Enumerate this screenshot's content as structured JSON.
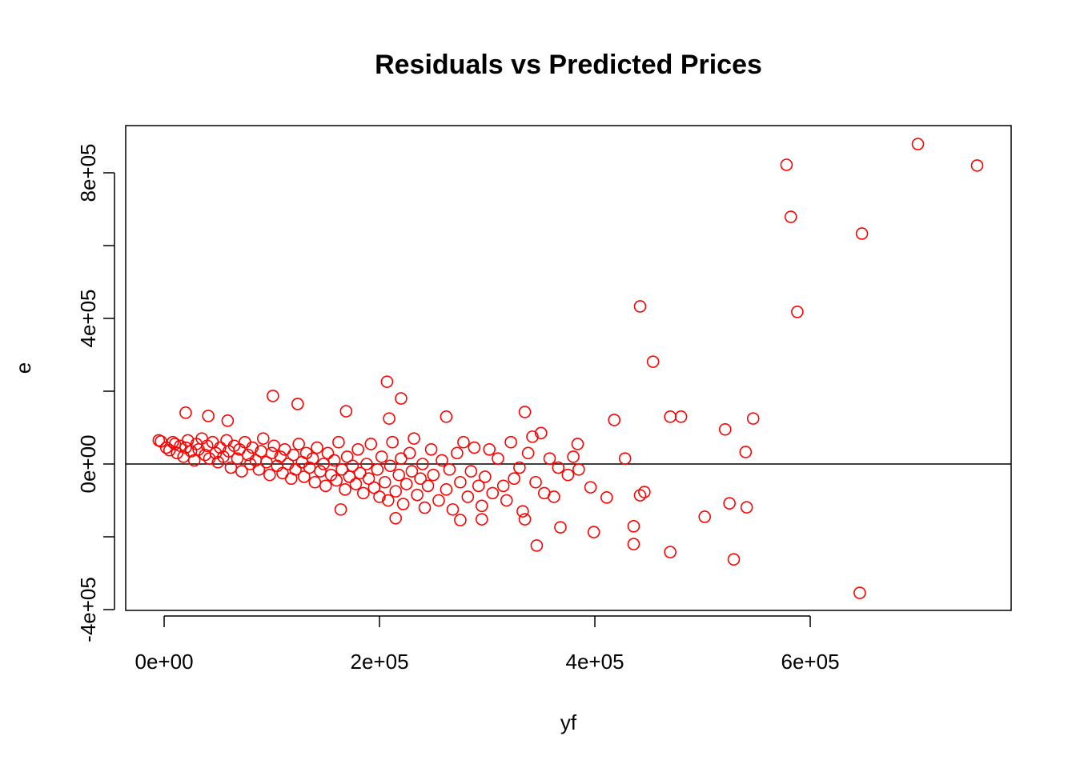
{
  "chart_data": {
    "type": "scatter",
    "title": "Residuals vs Predicted Prices",
    "x_label": "yf",
    "y_label": "e",
    "color": "#ff0000",
    "hline": 0,
    "xlim": [
      -35700,
      786600
    ],
    "ylim": [
      -402200,
      929670
    ],
    "xticks": [
      {
        "value": 0,
        "label": "0e+00"
      },
      {
        "value": 200000,
        "label": "2e+05"
      },
      {
        "value": 400000,
        "label": "4e+05"
      },
      {
        "value": 600000,
        "label": "6e+05"
      }
    ],
    "yticks": [
      {
        "value": -400000,
        "label": "-4e+05"
      },
      {
        "value": 0,
        "label": "0e+00"
      },
      {
        "value": 400000,
        "label": "4e+05"
      },
      {
        "value": 800000,
        "label": "8e+05"
      }
    ],
    "yminorticks": [
      -200000,
      200000,
      600000
    ],
    "x": [
      700000,
      755000,
      578000,
      582000,
      648000,
      442000,
      588000,
      454000,
      207000,
      220000,
      101000,
      124000,
      418000,
      470000,
      480000,
      547000,
      521000,
      540000,
      428000,
      335000,
      262000,
      209000,
      169000,
      20000,
      41000,
      59000,
      384000,
      396000,
      411000,
      446000,
      442000,
      502000,
      525000,
      541000,
      436000,
      436000,
      399000,
      368000,
      346000,
      470000,
      529000,
      646000,
      335000,
      295000,
      275000,
      215000,
      164000,
      -5000,
      -3000,
      2000,
      5000,
      8000,
      10000,
      12000,
      15000,
      18000,
      20000,
      22000,
      25000,
      28000,
      30000,
      32000,
      35000,
      38000,
      40000,
      42000,
      45000,
      48000,
      50000,
      52000,
      55000,
      58000,
      60000,
      62000,
      65000,
      68000,
      70000,
      72000,
      75000,
      78000,
      80000,
      82000,
      85000,
      88000,
      90000,
      92000,
      95000,
      98000,
      100000,
      102000,
      105000,
      108000,
      110000,
      112000,
      115000,
      118000,
      120000,
      122000,
      125000,
      128000,
      130000,
      132000,
      135000,
      138000,
      140000,
      142000,
      145000,
      148000,
      150000,
      152000,
      155000,
      158000,
      160000,
      162000,
      165000,
      168000,
      170000,
      172000,
      175000,
      178000,
      180000,
      182000,
      185000,
      188000,
      190000,
      192000,
      195000,
      198000,
      200000,
      202000,
      205000,
      208000,
      210000,
      212000,
      215000,
      218000,
      220000,
      222000,
      225000,
      228000,
      230000,
      232000,
      235000,
      238000,
      240000,
      242000,
      245000,
      248000,
      250000,
      255000,
      258000,
      262000,
      265000,
      268000,
      272000,
      275000,
      278000,
      282000,
      285000,
      288000,
      292000,
      295000,
      298000,
      302000,
      305000,
      310000,
      315000,
      318000,
      322000,
      325000,
      330000,
      333000,
      338000,
      342000,
      345000,
      350000,
      353000,
      358000,
      362000,
      366000,
      375000,
      380000,
      385000
    ],
    "values": [
      879000,
      820000,
      822000,
      679000,
      633000,
      433000,
      418000,
      281000,
      226000,
      180000,
      187000,
      165000,
      121000,
      130000,
      130000,
      125000,
      95000,
      33000,
      15000,
      143000,
      130000,
      125000,
      145000,
      141000,
      132000,
      119000,
      55000,
      -64000,
      -92000,
      -77000,
      -86000,
      -145000,
      -108000,
      -119000,
      -171000,
      -220000,
      -187000,
      -174000,
      -224000,
      -242000,
      -262000,
      -354000,
      -152000,
      -152000,
      -154000,
      -149000,
      -125000,
      65000,
      62000,
      45000,
      38000,
      60000,
      55000,
      30000,
      50000,
      20000,
      45000,
      65000,
      35000,
      10000,
      55000,
      40000,
      70000,
      25000,
      50000,
      15000,
      60000,
      30000,
      5000,
      45000,
      20000,
      65000,
      35000,
      -10000,
      50000,
      15000,
      40000,
      -20000,
      60000,
      25000,
      0,
      45000,
      10000,
      -15000,
      35000,
      70000,
      5000,
      -30000,
      30000,
      50000,
      -5000,
      20000,
      -25000,
      40000,
      0,
      -40000,
      25000,
      -15000,
      55000,
      5000,
      -35000,
      30000,
      -10000,
      15000,
      -50000,
      45000,
      -20000,
      0,
      -60000,
      30000,
      -30000,
      10000,
      -45000,
      60000,
      -15000,
      -70000,
      20000,
      -35000,
      -5000,
      -55000,
      40000,
      -25000,
      -80000,
      0,
      -40000,
      55000,
      -65000,
      -15000,
      -90000,
      20000,
      -50000,
      -100000,
      -5000,
      60000,
      -75000,
      -30000,
      15000,
      -110000,
      -55000,
      30000,
      -20000,
      70000,
      -85000,
      -40000,
      0,
      -120000,
      -60000,
      40000,
      -30000,
      -100000,
      10000,
      -70000,
      -15000,
      -125000,
      30000,
      -50000,
      60000,
      -90000,
      -20000,
      45000,
      -60000,
      -115000,
      -35000,
      40000,
      -80000,
      15000,
      -60000,
      -100000,
      60000,
      -40000,
      -10000,
      -130000,
      30000,
      75000,
      -50000,
      85000,
      -80000,
      15000,
      -90000,
      -10000,
      -30000,
      20000,
      -15000
    ]
  }
}
